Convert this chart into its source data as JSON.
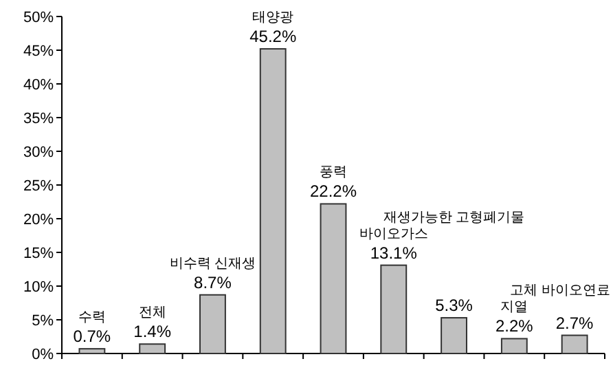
{
  "chart_data": {
    "type": "bar",
    "categories": [
      "수력",
      "전체",
      "비수력 신재생",
      "태양광",
      "풍력",
      "바이오가스",
      "재생가능한 고형폐기물",
      "지열",
      "고체 바이오연료"
    ],
    "values": [
      0.7,
      1.4,
      8.7,
      45.2,
      22.2,
      13.1,
      5.3,
      2.2,
      2.7
    ],
    "value_labels": [
      "0.7%",
      "1.4%",
      "8.7%",
      "45.2%",
      "22.2%",
      "13.1%",
      "5.3%",
      "2.2%",
      "2.7%"
    ],
    "color": "#c0c0c0",
    "ylim": [
      0,
      50
    ],
    "yticks": [
      {
        "value": 0,
        "label": "0%"
      },
      {
        "value": 5,
        "label": "5%"
      },
      {
        "value": 10,
        "label": "10%"
      },
      {
        "value": 15,
        "label": "15%"
      },
      {
        "value": 20,
        "label": "20%"
      },
      {
        "value": 25,
        "label": "25%"
      },
      {
        "value": 30,
        "label": "30%"
      },
      {
        "value": 35,
        "label": "35%"
      },
      {
        "value": 40,
        "label": "40%"
      },
      {
        "value": 45,
        "label": "45%"
      },
      {
        "value": 50,
        "label": "50%"
      }
    ],
    "tick_labels": "y",
    "grid": false
  }
}
